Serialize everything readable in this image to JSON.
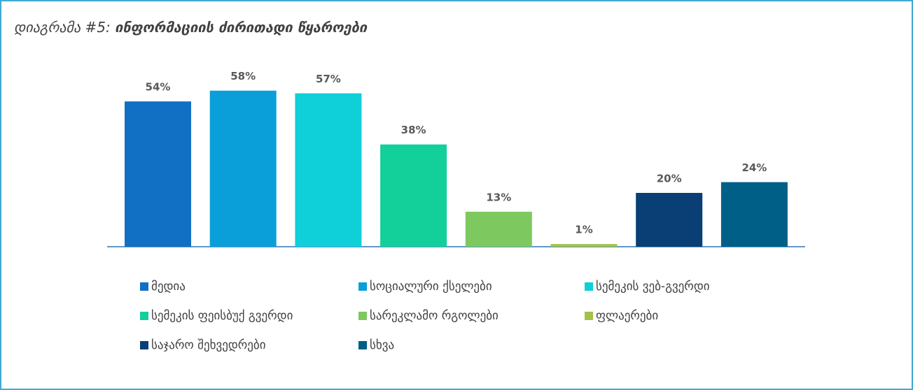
{
  "chart_data": {
    "type": "bar",
    "title_label": "დიაგრამა #5:",
    "title": "ინფორმაციის ძირითადი წყაროები",
    "categories": [
      "მედია",
      "სოციალური ქსელები",
      "სემეკის ვებ-გვერდი",
      "სემეკის ფეისბუქ გვერდი",
      "სარეკლამო რგოლები",
      "ფლაერები",
      "საჯარო შეხვედრები",
      "სხვა"
    ],
    "values": [
      54,
      58,
      57,
      38,
      13,
      1,
      20,
      24
    ],
    "value_labels": [
      "54%",
      "58%",
      "57%",
      "38%",
      "13%",
      "1%",
      "20%",
      "24%"
    ],
    "colors": [
      "#1170c4",
      "#0a9fd9",
      "#0fcfd8",
      "#13cf9a",
      "#7dc95f",
      "#a4c24a",
      "#0a3f75",
      "#005f87"
    ],
    "ylim": [
      0,
      60
    ]
  }
}
